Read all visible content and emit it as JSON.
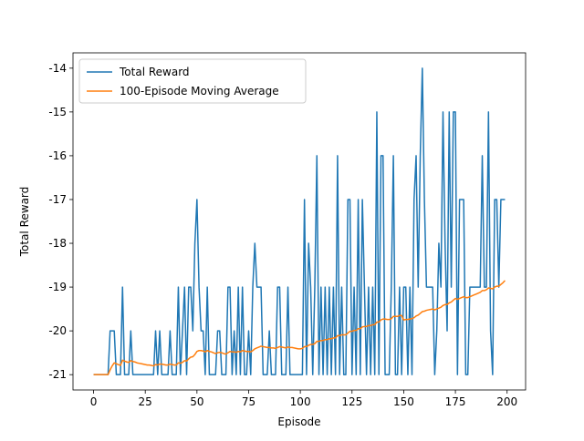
{
  "chart_data": {
    "type": "line",
    "xlabel": "Episode",
    "ylabel": "Total Reward",
    "x": [
      0,
      1,
      2,
      3,
      4,
      5,
      6,
      7,
      8,
      9,
      10,
      11,
      12,
      13,
      14,
      15,
      16,
      17,
      18,
      19,
      20,
      21,
      22,
      23,
      24,
      25,
      26,
      27,
      28,
      29,
      30,
      31,
      32,
      33,
      34,
      35,
      36,
      37,
      38,
      39,
      40,
      41,
      42,
      43,
      44,
      45,
      46,
      47,
      48,
      49,
      50,
      51,
      52,
      53,
      54,
      55,
      56,
      57,
      58,
      59,
      60,
      61,
      62,
      63,
      64,
      65,
      66,
      67,
      68,
      69,
      70,
      71,
      72,
      73,
      74,
      75,
      76,
      77,
      78,
      79,
      80,
      81,
      82,
      83,
      84,
      85,
      86,
      87,
      88,
      89,
      90,
      91,
      92,
      93,
      94,
      95,
      96,
      97,
      98,
      99,
      100,
      101,
      102,
      103,
      104,
      105,
      106,
      107,
      108,
      109,
      110,
      111,
      112,
      113,
      114,
      115,
      116,
      117,
      118,
      119,
      120,
      121,
      122,
      123,
      124,
      125,
      126,
      127,
      128,
      129,
      130,
      131,
      132,
      133,
      134,
      135,
      136,
      137,
      138,
      139,
      140,
      141,
      142,
      143,
      144,
      145,
      146,
      147,
      148,
      149,
      150,
      151,
      152,
      153,
      154,
      155,
      156,
      157,
      158,
      159,
      160,
      161,
      162,
      163,
      164,
      165,
      166,
      167,
      168,
      169,
      170,
      171,
      172,
      173,
      174,
      175,
      176,
      177,
      178,
      179,
      180,
      181,
      182,
      183,
      184,
      185,
      186,
      187,
      188,
      189,
      190,
      191,
      192,
      193,
      194,
      195,
      196,
      197,
      198,
      199
    ],
    "series": [
      {
        "name": "Total Reward",
        "color": "#1f77b4",
        "values": [
          -21,
          -21,
          -21,
          -21,
          -21,
          -21,
          -21,
          -21,
          -20,
          -20,
          -20,
          -21,
          -21,
          -21,
          -19,
          -21,
          -21,
          -21,
          -20,
          -21,
          -21,
          -21,
          -21,
          -21,
          -21,
          -21,
          -21,
          -21,
          -21,
          -21,
          -20,
          -21,
          -20,
          -21,
          -21,
          -21,
          -21,
          -20,
          -21,
          -21,
          -21,
          -19,
          -21,
          -20,
          -19,
          -21,
          -19,
          -19,
          -20,
          -18,
          -17,
          -19,
          -20,
          -20,
          -21,
          -19,
          -21,
          -21,
          -21,
          -21,
          -20,
          -20,
          -21,
          -21,
          -21,
          -19,
          -19,
          -21,
          -20,
          -21,
          -19,
          -21,
          -19,
          -21,
          -21,
          -20,
          -21,
          -19,
          -18,
          -19,
          -19,
          -19,
          -21,
          -21,
          -21,
          -20,
          -21,
          -21,
          -21,
          -19,
          -19,
          -21,
          -21,
          -21,
          -19,
          -21,
          -21,
          -21,
          -21,
          -21,
          -21,
          -21,
          -17,
          -21,
          -18,
          -19,
          -21,
          -19,
          -16,
          -21,
          -19,
          -21,
          -19,
          -21,
          -19,
          -21,
          -19,
          -21,
          -16,
          -21,
          -19,
          -21,
          -21,
          -17,
          -17,
          -21,
          -19,
          -21,
          -17,
          -21,
          -17,
          -19,
          -21,
          -19,
          -21,
          -19,
          -21,
          -15,
          -21,
          -16,
          -16,
          -21,
          -21,
          -21,
          -19,
          -16,
          -21,
          -21,
          -19,
          -21,
          -19,
          -19,
          -21,
          -19,
          -21,
          -17,
          -16,
          -19,
          -16,
          -14,
          -17,
          -19,
          -19,
          -19,
          -19,
          -21,
          -20,
          -18,
          -19,
          -15,
          -18,
          -20,
          -15,
          -19,
          -15,
          -15,
          -21,
          -17,
          -17,
          -17,
          -21,
          -21,
          -19,
          -19,
          -19,
          -19,
          -19,
          -19,
          -16,
          -19,
          -19,
          -15,
          -20,
          -21,
          -17,
          -17,
          -19,
          -17,
          -17,
          -17
        ]
      },
      {
        "name": "100-Episode Moving Average",
        "color": "#ff7f0e",
        "values": [
          -21,
          -21,
          -21,
          -21,
          -21,
          -21,
          -21,
          -21,
          -20.89,
          -20.8,
          -20.73,
          -20.75,
          -20.77,
          -20.79,
          -20.67,
          -20.69,
          -20.71,
          -20.72,
          -20.68,
          -20.7,
          -20.71,
          -20.73,
          -20.74,
          -20.75,
          -20.76,
          -20.77,
          -20.78,
          -20.78,
          -20.79,
          -20.8,
          -20.77,
          -20.78,
          -20.76,
          -20.76,
          -20.77,
          -20.78,
          -20.78,
          -20.76,
          -20.77,
          -20.78,
          -20.78,
          -20.73,
          -20.74,
          -20.72,
          -20.68,
          -20.69,
          -20.64,
          -20.6,
          -20.59,
          -20.54,
          -20.47,
          -20.45,
          -20.45,
          -20.46,
          -20.48,
          -20.45,
          -20.47,
          -20.48,
          -20.5,
          -20.52,
          -20.5,
          -20.49,
          -20.5,
          -20.52,
          -20.53,
          -20.5,
          -20.47,
          -20.48,
          -20.48,
          -20.49,
          -20.47,
          -20.48,
          -20.45,
          -20.46,
          -20.47,
          -20.47,
          -20.48,
          -20.45,
          -20.41,
          -20.39,
          -20.37,
          -20.35,
          -20.36,
          -20.37,
          -20.38,
          -20.38,
          -20.39,
          -20.39,
          -20.4,
          -20.38,
          -20.36,
          -20.37,
          -20.38,
          -20.39,
          -20.37,
          -20.38,
          -20.38,
          -20.39,
          -20.4,
          -20.41,
          -20.41,
          -20.4,
          -20.36,
          -20.36,
          -20.33,
          -20.31,
          -20.31,
          -20.29,
          -20.24,
          -20.24,
          -20.22,
          -20.22,
          -20.2,
          -20.2,
          -20.18,
          -20.18,
          -20.16,
          -20.16,
          -20.11,
          -20.11,
          -20.09,
          -20.09,
          -20.09,
          -20.05,
          -20.01,
          -20.01,
          -19.99,
          -19.99,
          -19.95,
          -19.95,
          -19.91,
          -19.9,
          -19.9,
          -19.88,
          -19.88,
          -19.86,
          -19.86,
          -19.8,
          -19.8,
          -19.75,
          -19.73,
          -19.73,
          -19.74,
          -19.74,
          -19.72,
          -19.67,
          -19.67,
          -19.67,
          -19.65,
          -19.65,
          -19.75,
          -19.74,
          -19.74,
          -19.73,
          -19.72,
          -19.7,
          -19.66,
          -19.64,
          -19.6,
          -19.56,
          -19.55,
          -19.53,
          -19.52,
          -19.51,
          -19.5,
          -19.52,
          -19.5,
          -19.48,
          -19.46,
          -19.42,
          -19.4,
          -19.4,
          -19.36,
          -19.34,
          -19.3,
          -19.26,
          -19.28,
          -19.26,
          -19.24,
          -19.22,
          -19.24,
          -19.24,
          -19.22,
          -19.2,
          -19.18,
          -19.16,
          -19.14,
          -19.12,
          -19.08,
          -19.08,
          -19.06,
          -19.02,
          -19.03,
          -19.04,
          -19,
          -18.98,
          -18.98,
          -18.94,
          -18.9,
          -18.85
        ]
      }
    ],
    "xlim": [
      -9.95,
      208.95
    ],
    "xticks": [
      0,
      25,
      50,
      75,
      100,
      125,
      150,
      175,
      200
    ],
    "ylim": [
      -21.35,
      -13.65
    ],
    "yticks": [
      -21,
      -20,
      -19,
      -18,
      -17,
      -16,
      -15,
      -14
    ],
    "legend": "upper left"
  }
}
